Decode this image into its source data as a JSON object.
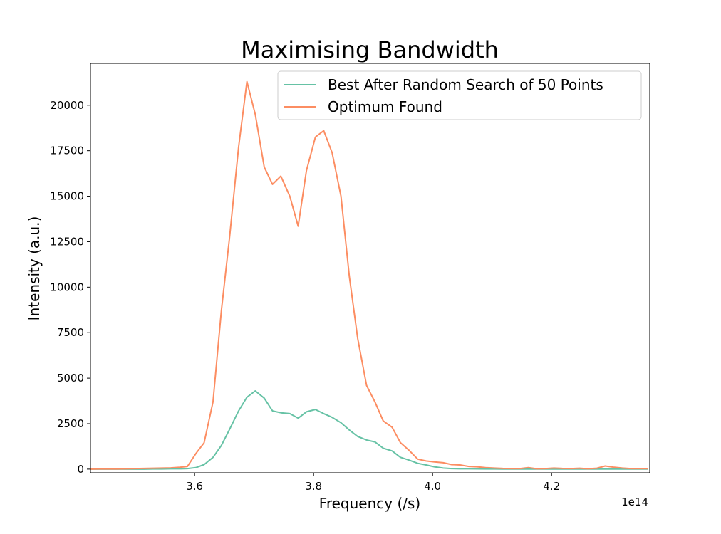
{
  "chart_data": {
    "type": "line",
    "title": "Maximising Bandwidth",
    "xlabel": "Frequency (/s)",
    "ylabel": "Intensity (a.u.)",
    "x_offset_label": "1e14",
    "xlim": [
      3.425,
      4.365
    ],
    "ylim": [
      -200,
      22300
    ],
    "x_ticks": [
      3.6,
      3.8,
      4.0,
      4.2
    ],
    "x_tick_labels": [
      "3.6",
      "3.8",
      "4.0",
      "4.2"
    ],
    "y_ticks": [
      0,
      2500,
      5000,
      7500,
      10000,
      12500,
      15000,
      17500,
      20000
    ],
    "y_tick_labels": [
      "0",
      "2500",
      "5000",
      "7500",
      "10000",
      "12500",
      "15000",
      "17500",
      "20000"
    ],
    "grid": false,
    "legend_position": "top-right",
    "x": [
      3.425,
      3.44,
      3.455,
      3.47,
      3.485,
      3.5,
      3.515,
      3.53,
      3.545,
      3.56,
      3.575,
      3.588,
      3.602,
      3.616,
      3.631,
      3.645,
      3.659,
      3.674,
      3.688,
      3.702,
      3.717,
      3.731,
      3.745,
      3.76,
      3.774,
      3.788,
      3.803,
      3.817,
      3.831,
      3.846,
      3.86,
      3.874,
      3.889,
      3.903,
      3.917,
      3.932,
      3.946,
      3.96,
      3.975,
      3.989,
      4.003,
      4.018,
      4.032,
      4.046,
      4.061,
      4.075,
      4.089,
      4.104,
      4.118,
      4.132,
      4.147,
      4.161,
      4.175,
      4.19,
      4.204,
      4.218,
      4.233,
      4.247,
      4.261,
      4.276,
      4.29,
      4.304,
      4.319,
      4.333,
      4.347,
      4.362
    ],
    "series": [
      {
        "name": "Best After Random Search of 50 Points",
        "color": "#66c2a5",
        "values": [
          0,
          0,
          0,
          0,
          0,
          0,
          0,
          10,
          10,
          20,
          20,
          30,
          80,
          250,
          650,
          1300,
          2200,
          3200,
          3950,
          4300,
          3900,
          3200,
          3100,
          3050,
          2800,
          3150,
          3280,
          3050,
          2850,
          2550,
          2150,
          1800,
          1600,
          1500,
          1150,
          1000,
          650,
          500,
          320,
          230,
          130,
          60,
          30,
          20,
          20,
          15,
          10,
          10,
          5,
          5,
          5,
          5,
          5,
          5,
          5,
          5,
          5,
          5,
          5,
          5,
          5,
          5,
          5,
          5,
          5,
          5
        ]
      },
      {
        "name": "Optimum Found",
        "color": "#fc8d62",
        "values": [
          0,
          10,
          10,
          10,
          20,
          30,
          40,
          50,
          60,
          70,
          100,
          150,
          850,
          1450,
          3700,
          8700,
          12800,
          17700,
          21300,
          19500,
          16600,
          15650,
          16100,
          15000,
          13350,
          16400,
          18250,
          18600,
          17400,
          15000,
          10600,
          7200,
          4600,
          3700,
          2650,
          2300,
          1450,
          1050,
          550,
          450,
          400,
          350,
          250,
          230,
          150,
          130,
          80,
          60,
          40,
          30,
          30,
          80,
          20,
          30,
          60,
          40,
          30,
          50,
          20,
          50,
          170,
          110,
          60,
          30,
          30,
          30
        ]
      }
    ]
  }
}
